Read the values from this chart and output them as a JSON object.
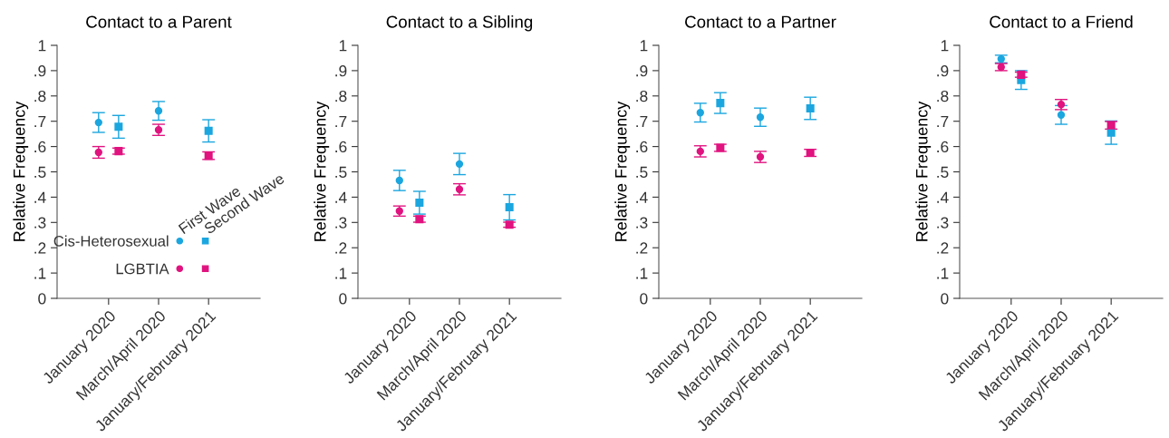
{
  "chart_data": [
    {
      "type": "scatter",
      "title": "Contact to a Parent",
      "ylabel": "Relative Frequency",
      "categories": [
        "January 2020",
        "March/April 2020",
        "January/February 2021"
      ],
      "ylim": [
        0,
        1
      ],
      "yticks": [
        0,
        {
          "value": 0.1,
          "label": ".1"
        },
        {
          "value": 0.2,
          "label": ".2"
        },
        {
          "value": 0.3,
          "label": ".3"
        },
        {
          "value": 0.4,
          "label": ".4"
        },
        {
          "value": 0.5,
          "label": ".5"
        },
        {
          "value": 0.6,
          "label": ".6"
        },
        {
          "value": 0.7,
          "label": ".7"
        },
        {
          "value": 0.8,
          "label": ".8"
        },
        {
          "value": 0.9,
          "label": ".9"
        },
        1
      ],
      "grid": false,
      "legend": "bottom",
      "annotations": [
        "First Wave",
        "Second Wave"
      ],
      "series": [
        {
          "name": "Cis-Heterosexual",
          "color": "#1ba6df",
          "marker": "circle",
          "values": [
            0.695,
            0.741,
            null
          ],
          "errors": [
            0.039,
            0.037,
            null
          ]
        },
        {
          "color": "#1ba6df",
          "marker": "square",
          "values": [
            0.678,
            null,
            0.662
          ],
          "errors": [
            0.045,
            null,
            0.044
          ]
        },
        {
          "name": "LGBTIA",
          "color": "#e0137f",
          "marker": "circle",
          "values": [
            0.577,
            0.666,
            null
          ],
          "errors": [
            0.023,
            0.022,
            null
          ]
        },
        {
          "color": "#e0137f",
          "marker": "square",
          "values": [
            0.582,
            null,
            0.564
          ],
          "errors": [
            0.012,
            null,
            0.015
          ]
        }
      ]
    },
    {
      "type": "scatter",
      "title": "Contact to a Sibling",
      "ylabel": "Relative Frequency",
      "categories": [
        "January 2020",
        "March/April 2020",
        "January/February 2021"
      ],
      "ylim": [
        0,
        1
      ],
      "yticks": [
        0,
        {
          "value": 0.1,
          "label": ".1"
        },
        {
          "value": 0.2,
          "label": ".2"
        },
        {
          "value": 0.3,
          "label": ".3"
        },
        {
          "value": 0.4,
          "label": ".4"
        },
        {
          "value": 0.5,
          "label": ".5"
        },
        {
          "value": 0.6,
          "label": ".6"
        },
        {
          "value": 0.7,
          "label": ".7"
        },
        {
          "value": 0.8,
          "label": ".8"
        },
        {
          "value": 0.9,
          "label": ".9"
        },
        1
      ],
      "grid": false,
      "series": [
        {
          "color": "#1ba6df",
          "marker": "circle",
          "values": [
            0.466,
            0.531,
            null
          ],
          "errors": [
            0.04,
            0.042,
            null
          ]
        },
        {
          "color": "#1ba6df",
          "marker": "square",
          "values": [
            0.378,
            null,
            0.36
          ],
          "errors": [
            0.045,
            null,
            0.05
          ]
        },
        {
          "color": "#e0137f",
          "marker": "circle",
          "values": [
            0.345,
            0.431,
            null
          ],
          "errors": [
            0.02,
            0.022,
            null
          ]
        },
        {
          "color": "#e0137f",
          "marker": "square",
          "values": [
            0.313,
            null,
            0.291
          ],
          "errors": [
            0.012,
            null,
            0.01
          ]
        }
      ]
    },
    {
      "type": "scatter",
      "title": "Contact to a Partner",
      "ylabel": "Relative Frequency",
      "categories": [
        "January 2020",
        "March/April 2020",
        "January/February 2021"
      ],
      "ylim": [
        0,
        1
      ],
      "yticks": [
        0,
        {
          "value": 0.1,
          "label": ".1"
        },
        {
          "value": 0.2,
          "label": ".2"
        },
        {
          "value": 0.3,
          "label": ".3"
        },
        {
          "value": 0.4,
          "label": ".4"
        },
        {
          "value": 0.5,
          "label": ".5"
        },
        {
          "value": 0.6,
          "label": ".6"
        },
        {
          "value": 0.7,
          "label": ".7"
        },
        {
          "value": 0.8,
          "label": ".8"
        },
        {
          "value": 0.9,
          "label": ".9"
        },
        1
      ],
      "grid": false,
      "series": [
        {
          "color": "#1ba6df",
          "marker": "circle",
          "values": [
            0.734,
            0.716,
            null
          ],
          "errors": [
            0.037,
            0.036,
            null
          ]
        },
        {
          "color": "#1ba6df",
          "marker": "square",
          "values": [
            0.772,
            null,
            0.751
          ],
          "errors": [
            0.041,
            null,
            0.044
          ]
        },
        {
          "color": "#e0137f",
          "marker": "circle",
          "values": [
            0.581,
            0.559,
            null
          ],
          "errors": [
            0.022,
            0.022,
            null
          ]
        },
        {
          "color": "#e0137f",
          "marker": "square",
          "values": [
            0.595,
            null,
            0.575
          ],
          "errors": [
            0.014,
            null,
            0.014
          ]
        }
      ]
    },
    {
      "type": "scatter",
      "title": "Contact to a Friend",
      "ylabel": "Relative Frequency",
      "categories": [
        "January 2020",
        "March/April 2020",
        "January/February 2021"
      ],
      "ylim": [
        0,
        1
      ],
      "yticks": [
        0,
        {
          "value": 0.1,
          "label": ".1"
        },
        {
          "value": 0.2,
          "label": ".2"
        },
        {
          "value": 0.3,
          "label": ".3"
        },
        {
          "value": 0.4,
          "label": ".4"
        },
        {
          "value": 0.5,
          "label": ".5"
        },
        {
          "value": 0.6,
          "label": ".6"
        },
        {
          "value": 0.7,
          "label": ".7"
        },
        {
          "value": 0.8,
          "label": ".8"
        },
        {
          "value": 0.9,
          "label": ".9"
        },
        1
      ],
      "grid": false,
      "series": [
        {
          "color": "#1ba6df",
          "marker": "circle",
          "values": [
            0.946,
            0.725,
            null
          ],
          "errors": [
            0.015,
            0.037,
            null
          ]
        },
        {
          "color": "#1ba6df",
          "marker": "square",
          "values": [
            0.863,
            null,
            0.655
          ],
          "errors": [
            0.037,
            null,
            0.046
          ]
        },
        {
          "color": "#e0137f",
          "marker": "circle",
          "values": [
            0.914,
            0.766,
            null
          ],
          "errors": [
            0.014,
            0.02,
            null
          ]
        },
        {
          "color": "#e0137f",
          "marker": "square",
          "values": [
            0.884,
            null,
            0.684
          ],
          "errors": [
            0.01,
            null,
            0.015
          ]
        }
      ]
    }
  ]
}
